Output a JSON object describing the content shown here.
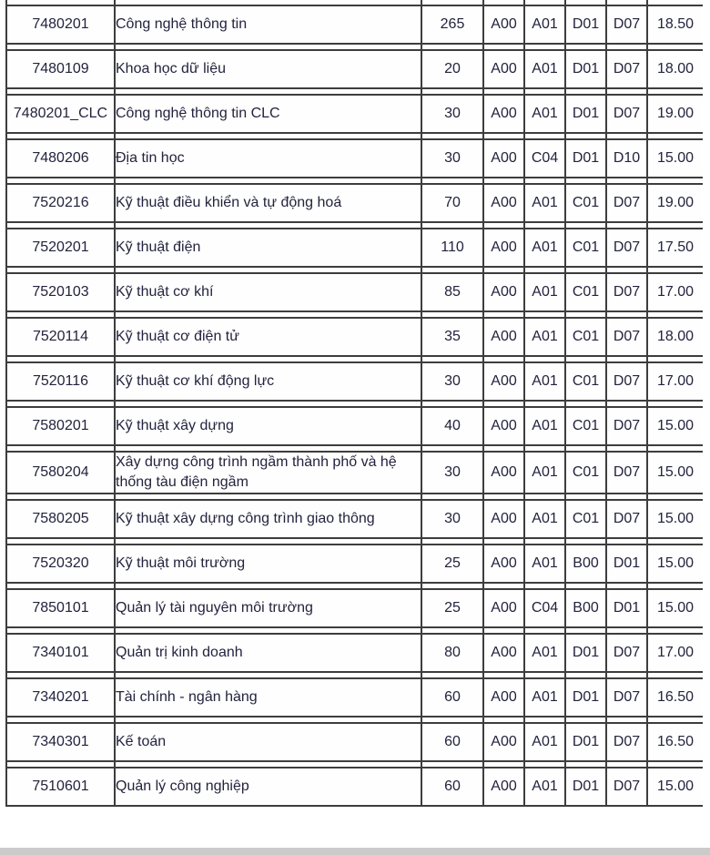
{
  "page": {
    "background_color": "#ffffff",
    "footer_strip_color": "#cbcbcb",
    "border_color": "#3d3d3d",
    "text_color": "#23233e"
  },
  "table": {
    "description": "University admission benchmark scores table (Vietnamese), clipped mid-table at top",
    "columns": [
      "code",
      "name",
      "quota",
      "combo1",
      "combo2",
      "combo3",
      "combo4",
      "score"
    ],
    "rows": [
      {
        "code": "7480201",
        "name": "Công nghệ thông tin",
        "quota": "265",
        "combos": [
          "A00",
          "A01",
          "D01",
          "D07"
        ],
        "score": "18.50"
      },
      {
        "code": "7480109",
        "name": "Khoa học dữ liệu",
        "quota": "20",
        "combos": [
          "A00",
          "A01",
          "D01",
          "D07"
        ],
        "score": "18.00"
      },
      {
        "code": "7480201_CLC",
        "name": "Công nghệ thông tin CLC",
        "quota": "30",
        "combos": [
          "A00",
          "A01",
          "D01",
          "D07"
        ],
        "score": "19.00"
      },
      {
        "code": "7480206",
        "name": "Địa tin học",
        "quota": "30",
        "combos": [
          "A00",
          "C04",
          "D01",
          "D10"
        ],
        "score": "15.00"
      },
      {
        "code": "7520216",
        "name": "Kỹ thuật điều khiển và tự động hoá",
        "quota": "70",
        "combos": [
          "A00",
          "A01",
          "C01",
          "D07"
        ],
        "score": "19.00"
      },
      {
        "code": "7520201",
        "name": "Kỹ thuật điện",
        "quota": "110",
        "combos": [
          "A00",
          "A01",
          "C01",
          "D07"
        ],
        "score": "17.50"
      },
      {
        "code": "7520103",
        "name": "Kỹ thuật cơ khí",
        "quota": "85",
        "combos": [
          "A00",
          "A01",
          "C01",
          "D07"
        ],
        "score": "17.00"
      },
      {
        "code": "7520114",
        "name": "Kỹ thuật cơ điện tử",
        "quota": "35",
        "combos": [
          "A00",
          "A01",
          "C01",
          "D07"
        ],
        "score": "18.00"
      },
      {
        "code": "7520116",
        "name": "Kỹ thuật cơ khí động lực",
        "quota": "30",
        "combos": [
          "A00",
          "A01",
          "C01",
          "D07"
        ],
        "score": "17.00"
      },
      {
        "code": "7580201",
        "name": "Kỹ thuật xây dựng",
        "quota": "40",
        "combos": [
          "A00",
          "A01",
          "C01",
          "D07"
        ],
        "score": "15.00"
      },
      {
        "code": "7580204",
        "name": "Xây dựng công trình ngầm thành phố và hệ thống tàu điện ngầm",
        "quota": "30",
        "combos": [
          "A00",
          "A01",
          "C01",
          "D07"
        ],
        "score": "15.00"
      },
      {
        "code": "7580205",
        "name": "Kỹ thuật xây dựng công trình giao thông",
        "quota": "30",
        "combos": [
          "A00",
          "A01",
          "C01",
          "D07"
        ],
        "score": "15.00"
      },
      {
        "code": "7520320",
        "name": "Kỹ thuật môi trường",
        "quota": "25",
        "combos": [
          "A00",
          "A01",
          "B00",
          "D01"
        ],
        "score": "15.00"
      },
      {
        "code": "7850101",
        "name": "Quản lý tài nguyên môi trường",
        "quota": "25",
        "combos": [
          "A00",
          "C04",
          "B00",
          "D01"
        ],
        "score": "15.00"
      },
      {
        "code": "7340101",
        "name": "Quản trị kinh doanh",
        "quota": "80",
        "combos": [
          "A00",
          "A01",
          "D01",
          "D07"
        ],
        "score": "17.00"
      },
      {
        "code": "7340201",
        "name": "Tài chính - ngân hàng",
        "quota": "60",
        "combos": [
          "A00",
          "A01",
          "D01",
          "D07"
        ],
        "score": "16.50"
      },
      {
        "code": "7340301",
        "name": "Kế toán",
        "quota": "60",
        "combos": [
          "A00",
          "A01",
          "D01",
          "D07"
        ],
        "score": "16.50"
      },
      {
        "code": "7510601",
        "name": "Quản lý công nghiệp",
        "quota": "60",
        "combos": [
          "A00",
          "A01",
          "D01",
          "D07"
        ],
        "score": "15.00"
      }
    ]
  }
}
